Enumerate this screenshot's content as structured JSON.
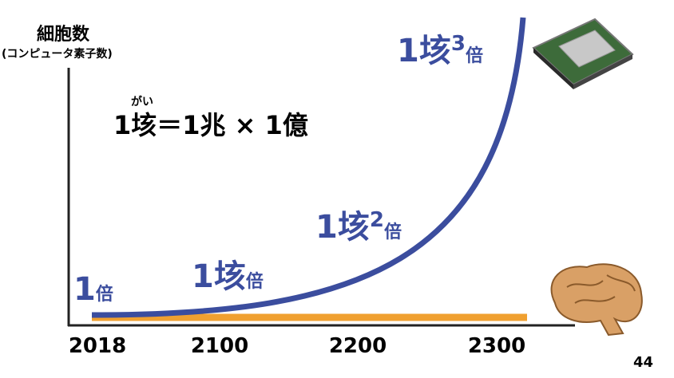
{
  "y_axis_label": "細胞数",
  "y_axis_sublabel": "(コンピュータ素子数)",
  "x_ticks": [
    "2018",
    "2100",
    "2200",
    "2300"
  ],
  "ruby": "がい",
  "definition": "1垓＝1兆 × 1億",
  "annotations": [
    {
      "lead": "1",
      "suffix": "倍"
    },
    {
      "lead": "1垓",
      "suffix": "倍"
    },
    {
      "lead": "1垓",
      "exponent": "2",
      "suffix": "倍"
    },
    {
      "lead": "1垓",
      "exponent": "3",
      "suffix": "倍"
    }
  ],
  "page_number": "44"
}
